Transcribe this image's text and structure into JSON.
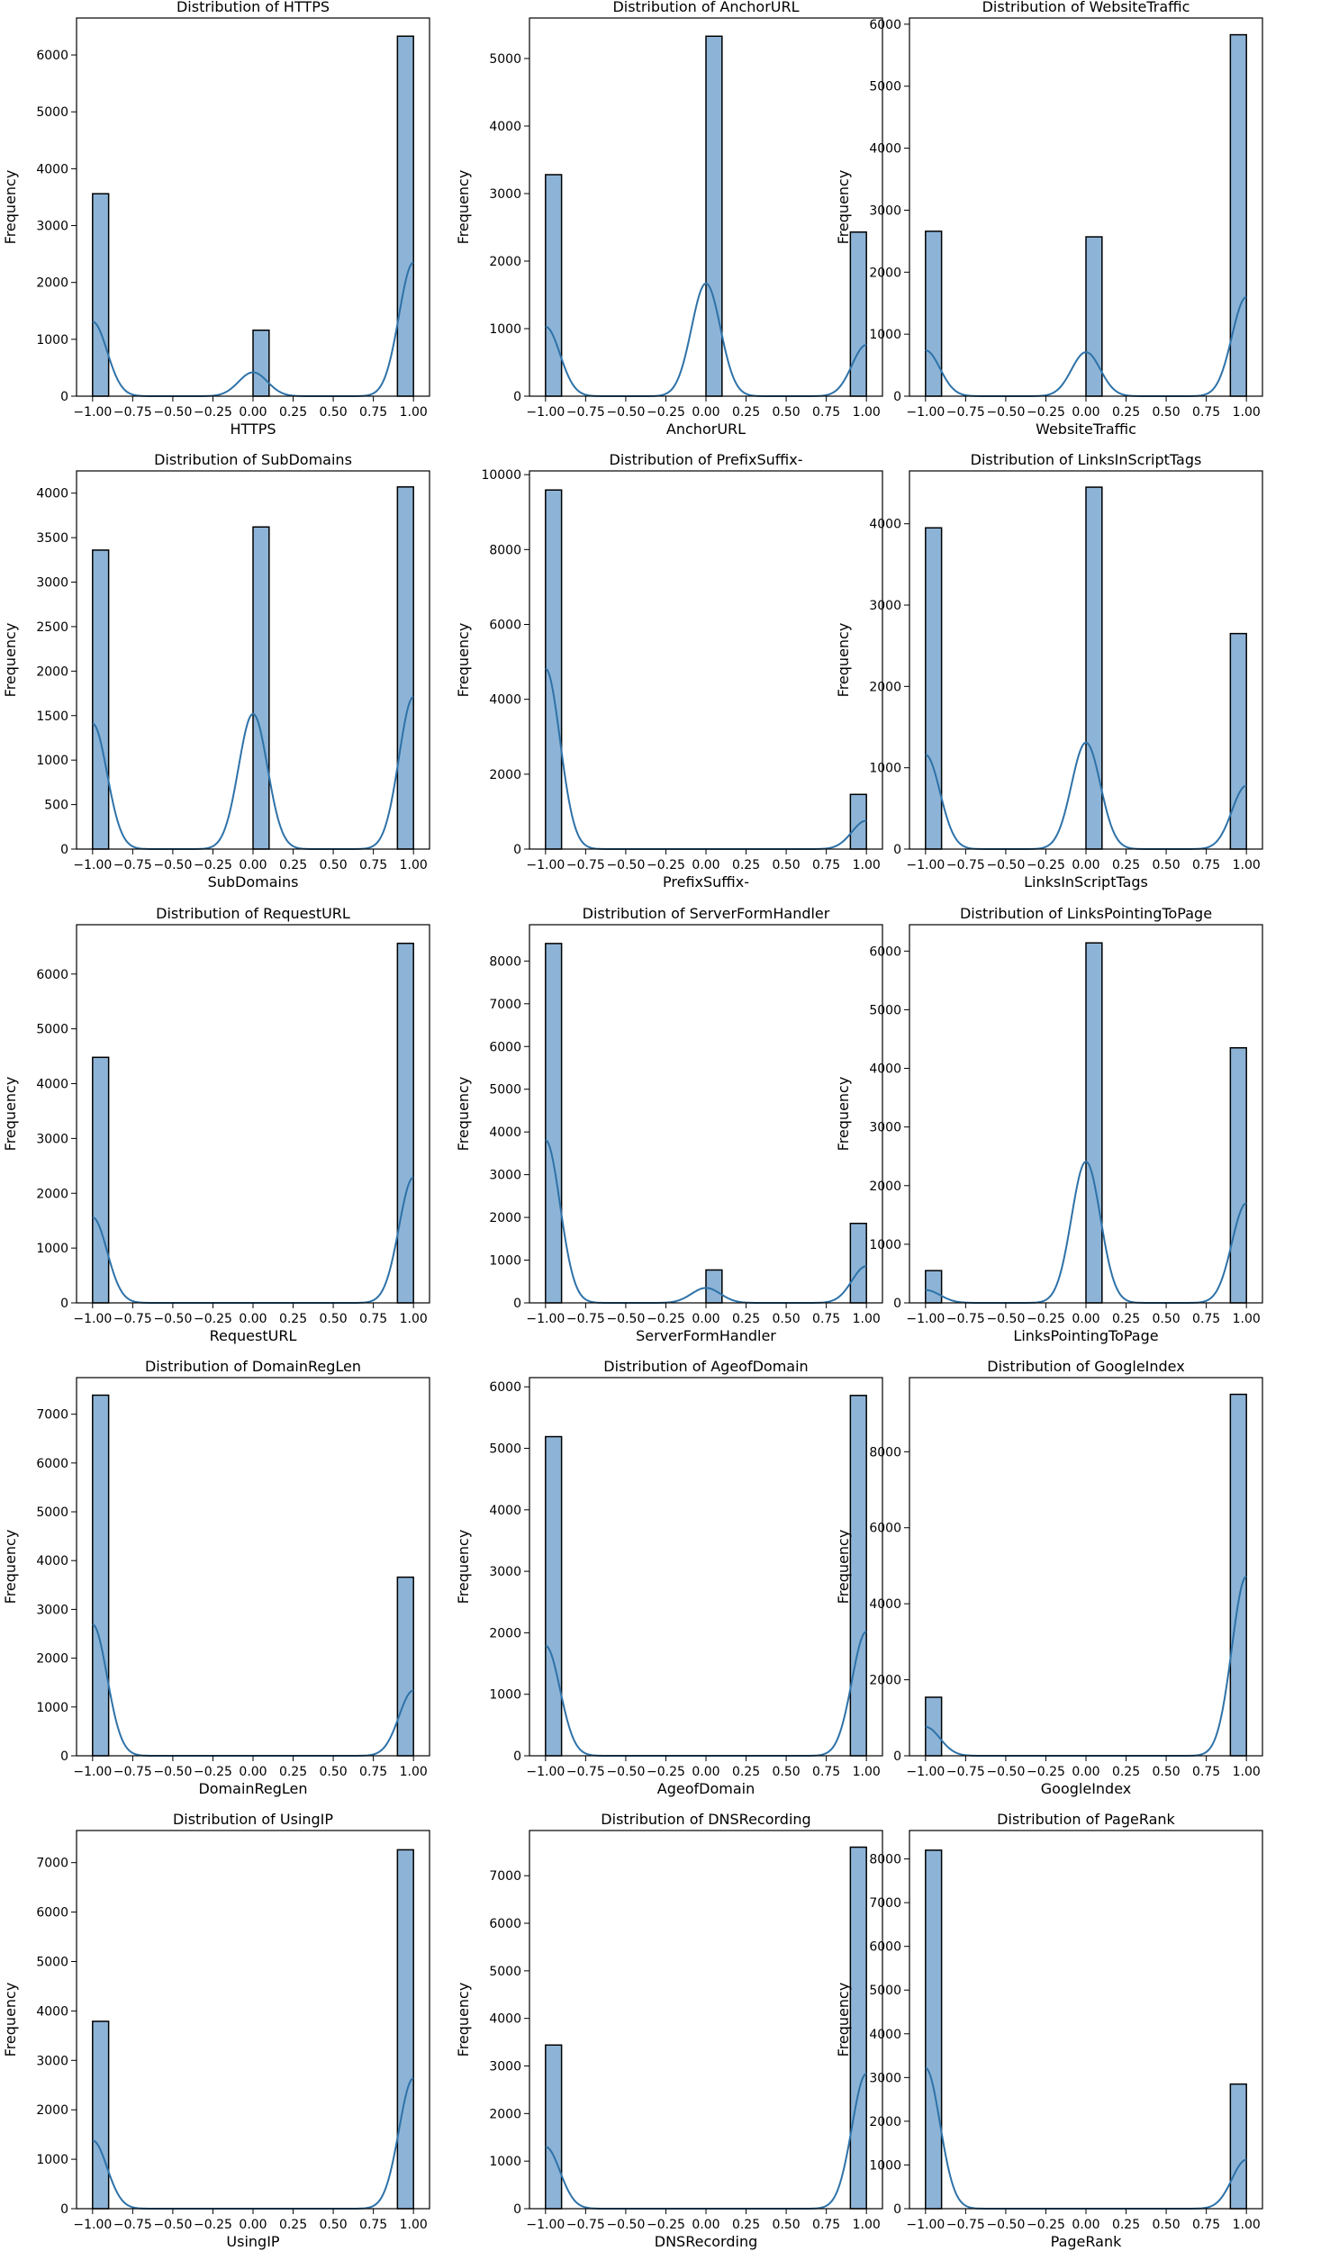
{
  "chart_data": [
    {
      "type": "bar",
      "feature": "HTTPS",
      "title": "Distribution of HTTPS",
      "xlabel": "HTTPS",
      "ylabel": "Frequency",
      "ylim": [
        0,
        6650
      ],
      "yticks": [
        0,
        1000,
        2000,
        3000,
        4000,
        5000,
        6000
      ],
      "bars": [
        {
          "x": -1.0,
          "value": 3560
        },
        {
          "x": 0.0,
          "value": 1160
        },
        {
          "x": 1.0,
          "value": 6330
        }
      ],
      "kde_peaks": [
        {
          "x": -1.0,
          "value": 1310
        },
        {
          "x": 0.0,
          "value": 420
        },
        {
          "x": 1.0,
          "value": 2350
        }
      ]
    },
    {
      "type": "bar",
      "feature": "AnchorURL",
      "title": "Distribution of AnchorURL",
      "xlabel": "AnchorURL",
      "ylabel": "Frequency",
      "ylim": [
        0,
        5600
      ],
      "yticks": [
        0,
        1000,
        2000,
        3000,
        4000,
        5000
      ],
      "bars": [
        {
          "x": -1.0,
          "value": 3280
        },
        {
          "x": 0.0,
          "value": 5330
        },
        {
          "x": 1.0,
          "value": 2430
        }
      ],
      "kde_peaks": [
        {
          "x": -1.0,
          "value": 1030
        },
        {
          "x": 0.0,
          "value": 1670
        },
        {
          "x": 1.0,
          "value": 760
        }
      ]
    },
    {
      "type": "bar",
      "feature": "WebsiteTraffic",
      "title": "Distribution of WebsiteTraffic",
      "xlabel": "WebsiteTraffic",
      "ylabel": "Frequency",
      "ylim": [
        0,
        6100
      ],
      "yticks": [
        0,
        1000,
        2000,
        3000,
        4000,
        5000,
        6000
      ],
      "bars": [
        {
          "x": -1.0,
          "value": 2660
        },
        {
          "x": 0.0,
          "value": 2570
        },
        {
          "x": 1.0,
          "value": 5830
        }
      ],
      "kde_peaks": [
        {
          "x": -1.0,
          "value": 740
        },
        {
          "x": 0.0,
          "value": 710
        },
        {
          "x": 1.0,
          "value": 1600
        }
      ]
    },
    {
      "type": "bar",
      "feature": "SubDomains",
      "title": "Distribution of SubDomains",
      "xlabel": "SubDomains",
      "ylabel": "Frequency",
      "ylim": [
        0,
        4250
      ],
      "yticks": [
        0,
        500,
        1000,
        1500,
        2000,
        2500,
        3000,
        3500,
        4000
      ],
      "bars": [
        {
          "x": -1.0,
          "value": 3360
        },
        {
          "x": 0.0,
          "value": 3620
        },
        {
          "x": 1.0,
          "value": 4070
        }
      ],
      "kde_peaks": [
        {
          "x": -1.0,
          "value": 1410
        },
        {
          "x": 0.0,
          "value": 1520
        },
        {
          "x": 1.0,
          "value": 1710
        }
      ]
    },
    {
      "type": "bar",
      "feature": "PrefixSuffix-",
      "title": "Distribution of PrefixSuffix-",
      "xlabel": "PrefixSuffix-",
      "ylabel": "Frequency",
      "ylim": [
        0,
        10100
      ],
      "yticks": [
        0,
        2000,
        4000,
        6000,
        8000,
        10000
      ],
      "bars": [
        {
          "x": -1.0,
          "value": 9590
        },
        {
          "x": 1.0,
          "value": 1460
        }
      ],
      "kde_peaks": [
        {
          "x": -1.0,
          "value": 4820
        },
        {
          "x": 1.0,
          "value": 760
        }
      ]
    },
    {
      "type": "bar",
      "feature": "LinksInScriptTags",
      "title": "Distribution of LinksInScriptTags",
      "xlabel": "LinksInScriptTags",
      "ylabel": "Frequency",
      "ylim": [
        0,
        4650
      ],
      "yticks": [
        0,
        1000,
        2000,
        3000,
        4000
      ],
      "bars": [
        {
          "x": -1.0,
          "value": 3950
        },
        {
          "x": 0.0,
          "value": 4450
        },
        {
          "x": 1.0,
          "value": 2650
        }
      ],
      "kde_peaks": [
        {
          "x": -1.0,
          "value": 1160
        },
        {
          "x": 0.0,
          "value": 1310
        },
        {
          "x": 1.0,
          "value": 780
        }
      ]
    },
    {
      "type": "bar",
      "feature": "RequestURL",
      "title": "Distribution of RequestURL",
      "xlabel": "RequestURL",
      "ylabel": "Frequency",
      "ylim": [
        0,
        6900
      ],
      "yticks": [
        0,
        1000,
        2000,
        3000,
        4000,
        5000,
        6000
      ],
      "bars": [
        {
          "x": -1.0,
          "value": 4480
        },
        {
          "x": 1.0,
          "value": 6560
        }
      ],
      "kde_peaks": [
        {
          "x": -1.0,
          "value": 1560
        },
        {
          "x": 1.0,
          "value": 2290
        }
      ]
    },
    {
      "type": "bar",
      "feature": "ServerFormHandler",
      "title": "Distribution of ServerFormHandler",
      "xlabel": "ServerFormHandler",
      "ylabel": "Frequency",
      "ylim": [
        0,
        8850
      ],
      "yticks": [
        0,
        1000,
        2000,
        3000,
        4000,
        5000,
        6000,
        7000,
        8000
      ],
      "bars": [
        {
          "x": -1.0,
          "value": 8410
        },
        {
          "x": 0.0,
          "value": 770
        },
        {
          "x": 1.0,
          "value": 1860
        }
      ],
      "kde_peaks": [
        {
          "x": -1.0,
          "value": 3810
        },
        {
          "x": 0.0,
          "value": 350
        },
        {
          "x": 1.0,
          "value": 860
        }
      ]
    },
    {
      "type": "bar",
      "feature": "LinksPointingToPage",
      "title": "Distribution of LinksPointingToPage",
      "xlabel": "LinksPointingToPage",
      "ylabel": "Frequency",
      "ylim": [
        0,
        6450
      ],
      "yticks": [
        0,
        1000,
        2000,
        3000,
        4000,
        5000,
        6000
      ],
      "bars": [
        {
          "x": -1.0,
          "value": 550
        },
        {
          "x": 0.0,
          "value": 6140
        },
        {
          "x": 1.0,
          "value": 4350
        }
      ],
      "kde_peaks": [
        {
          "x": -1.0,
          "value": 220
        },
        {
          "x": 0.0,
          "value": 2410
        },
        {
          "x": 1.0,
          "value": 1700
        }
      ]
    },
    {
      "type": "bar",
      "feature": "DomainRegLen",
      "title": "Distribution of DomainRegLen",
      "xlabel": "DomainRegLen",
      "ylabel": "Frequency",
      "ylim": [
        0,
        7750
      ],
      "yticks": [
        0,
        1000,
        2000,
        3000,
        4000,
        5000,
        6000,
        7000
      ],
      "bars": [
        {
          "x": -1.0,
          "value": 7390
        },
        {
          "x": 1.0,
          "value": 3660
        }
      ],
      "kde_peaks": [
        {
          "x": -1.0,
          "value": 2690
        },
        {
          "x": 1.0,
          "value": 1340
        }
      ]
    },
    {
      "type": "bar",
      "feature": "AgeofDomain",
      "title": "Distribution of AgeofDomain",
      "xlabel": "AgeofDomain",
      "ylabel": "Frequency",
      "ylim": [
        0,
        6150
      ],
      "yticks": [
        0,
        1000,
        2000,
        3000,
        4000,
        5000,
        6000
      ],
      "bars": [
        {
          "x": -1.0,
          "value": 5190
        },
        {
          "x": 1.0,
          "value": 5860
        }
      ],
      "kde_peaks": [
        {
          "x": -1.0,
          "value": 1790
        },
        {
          "x": 1.0,
          "value": 2020
        }
      ]
    },
    {
      "type": "bar",
      "feature": "GoogleIndex",
      "title": "Distribution of GoogleIndex",
      "xlabel": "GoogleIndex",
      "ylabel": "Frequency",
      "ylim": [
        0,
        9950
      ],
      "yticks": [
        0,
        2000,
        4000,
        6000,
        8000
      ],
      "bars": [
        {
          "x": -1.0,
          "value": 1540
        },
        {
          "x": 1.0,
          "value": 9510
        }
      ],
      "kde_peaks": [
        {
          "x": -1.0,
          "value": 760
        },
        {
          "x": 1.0,
          "value": 4720
        }
      ]
    },
    {
      "type": "bar",
      "feature": "UsingIP",
      "title": "Distribution of UsingIP",
      "xlabel": "UsingIP",
      "ylabel": "Frequency",
      "ylim": [
        0,
        7650
      ],
      "yticks": [
        0,
        1000,
        2000,
        3000,
        4000,
        5000,
        6000,
        7000
      ],
      "bars": [
        {
          "x": -1.0,
          "value": 3790
        },
        {
          "x": 1.0,
          "value": 7260
        }
      ],
      "kde_peaks": [
        {
          "x": -1.0,
          "value": 1380
        },
        {
          "x": 1.0,
          "value": 2640
        }
      ]
    },
    {
      "type": "bar",
      "feature": "DNSRecording",
      "title": "Distribution of DNSRecording",
      "xlabel": "DNSRecording",
      "ylabel": "Frequency",
      "ylim": [
        0,
        7950
      ],
      "yticks": [
        0,
        1000,
        2000,
        3000,
        4000,
        5000,
        6000,
        7000
      ],
      "bars": [
        {
          "x": -1.0,
          "value": 3440
        },
        {
          "x": 1.0,
          "value": 7600
        }
      ],
      "kde_peaks": [
        {
          "x": -1.0,
          "value": 1300
        },
        {
          "x": 1.0,
          "value": 2840
        }
      ]
    },
    {
      "type": "bar",
      "feature": "PageRank",
      "title": "Distribution of PageRank",
      "xlabel": "PageRank",
      "ylabel": "Frequency",
      "ylim": [
        0,
        8650
      ],
      "yticks": [
        0,
        1000,
        2000,
        3000,
        4000,
        5000,
        6000,
        7000,
        8000
      ],
      "bars": [
        {
          "x": -1.0,
          "value": 8200
        },
        {
          "x": 1.0,
          "value": 2850
        }
      ],
      "kde_peaks": [
        {
          "x": -1.0,
          "value": 3220
        },
        {
          "x": 1.0,
          "value": 1120
        }
      ]
    }
  ],
  "x_axis": {
    "range": [
      -1.1,
      1.1
    ],
    "ticks": [
      -1.0,
      -0.75,
      -0.5,
      -0.25,
      0.0,
      0.25,
      0.5,
      0.75,
      1.0
    ],
    "tick_labels": [
      "−1.00",
      "−0.75",
      "−0.50",
      "−0.25",
      "0.00",
      "0.25",
      "0.50",
      "0.75",
      "1.00"
    ],
    "bin_width": 0.1
  },
  "colors": {
    "bar_fill": "#8db4d7",
    "bar_edge": "#000000",
    "kde_line": "#2e72a8",
    "axis": "#000000"
  }
}
